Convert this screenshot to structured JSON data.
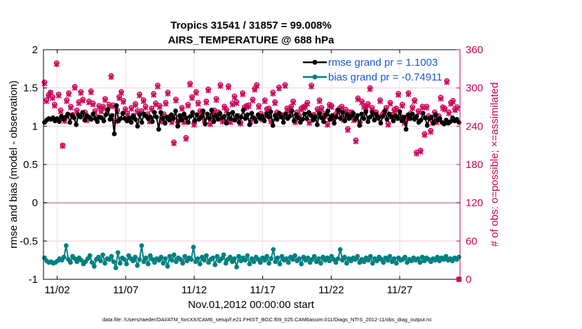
{
  "chart_data": {
    "type": "line",
    "title": "Tropics 31541 / 31857 = 99.008%",
    "subtitle": "AIRS_TEMPERATURE @ 688 hPa",
    "xlabel": "Nov.01,2012 00:00:00 start",
    "ylabel": "rmse and bias (model - observation)",
    "ylabel_right": "# of obs: o=possible; ×=assimilated",
    "xlim": [
      0,
      30.4
    ],
    "ylim": [
      -1,
      2
    ],
    "ylim_right": [
      0,
      360
    ],
    "x_ticks": [
      1,
      6,
      11,
      16,
      21,
      26
    ],
    "x_tick_labels": [
      "11/02",
      "11/07",
      "11/12",
      "11/17",
      "11/22",
      "11/27"
    ],
    "y_ticks": [
      -1,
      -0.5,
      0,
      0.5,
      1,
      1.5,
      2
    ],
    "y_tick_labels": [
      "-1",
      "-0.5",
      "0",
      "0.5",
      "1",
      "1.5",
      "2"
    ],
    "y_right_ticks": [
      0,
      60,
      120,
      180,
      240,
      300,
      360
    ],
    "y_right_tick_labels": [
      "0",
      "60",
      "120",
      "180",
      "240",
      "300",
      "360"
    ],
    "grid": true,
    "legend_position": "top-right",
    "series": [
      {
        "name": "rmse grand pr = 1.1003",
        "color": "#000000",
        "axis": "left",
        "values": [
          1.05,
          1.08,
          1.1,
          1.09,
          1.11,
          1.07,
          1.1,
          1.06,
          1.13,
          1.09,
          1.12,
          1.16,
          1.05,
          1.14,
          1.11,
          1.02,
          1.15,
          1.12,
          1.18,
          1.08,
          1.14,
          1.12,
          1.09,
          1.16,
          1.1,
          1.06,
          1.12,
          1.11,
          1.07,
          1.15,
          1.22,
          1.09,
          1.14,
          0.9,
          1.27,
          1.07,
          1.1,
          1.17,
          1.1,
          1.07,
          1.11,
          1.05,
          1.13,
          1.09,
          1.0,
          1.15,
          1.05,
          1.16,
          1.13,
          1.1,
          1.12,
          1.06,
          1.18,
          1.12,
          0.96,
          1.18,
          1.1,
          1.04,
          1.12,
          1.08,
          1.15,
          1.1,
          1.2,
          1.0,
          1.14,
          1.08,
          1.16,
          1.11,
          1.05,
          1.13,
          1.18,
          1.07,
          1.15,
          1.09,
          1.12,
          1.2,
          1.03,
          1.16,
          1.1,
          1.21,
          1.06,
          1.14,
          1.09,
          1.17,
          1.11,
          1.13,
          1.04,
          1.16,
          1.1,
          1.18,
          1.08,
          1.14,
          1.05,
          1.12,
          1.21,
          1.1,
          1.15,
          1.02,
          1.17,
          1.11,
          1.06,
          1.15,
          1.1,
          1.13,
          1.07,
          1.16,
          1.12,
          1.19,
          1.01,
          1.14,
          1.09,
          1.17,
          1.12,
          1.05,
          1.16,
          1.1,
          1.13,
          1.2,
          1.07,
          1.15,
          1.11,
          1.05,
          1.09,
          1.16,
          1.1,
          1.18,
          1.14,
          1.08,
          1.12,
          1.02,
          1.17,
          1.11,
          1.06,
          1.15,
          1.2,
          1.09,
          1.14,
          1.04,
          1.12,
          1.21,
          1.1,
          1.18,
          1.07,
          1.15,
          1.1,
          1.13,
          1.17,
          1.09,
          1.14,
          1.01,
          1.16,
          1.1,
          1.19,
          1.06,
          1.12,
          1.18,
          1.08,
          1.15,
          1.11,
          1.04,
          1.13,
          1.2,
          1.09,
          1.16,
          1.12,
          1.07,
          1.14,
          1.1,
          1.19,
          1.07,
          1.12,
          0.96,
          1.15,
          1.1,
          1.16,
          1.09,
          1.13,
          1.05,
          1.08,
          1.17,
          1.11,
          1.01,
          1.1,
          1.12,
          1.04,
          1.15,
          1.08,
          1.1,
          1.05,
          1.03,
          1.08,
          1.04,
          1.06,
          1.11,
          1.07,
          1.09,
          1.05
        ]
      },
      {
        "name": "bias grand pr = -0.74911",
        "color": "#008080",
        "axis": "left",
        "values": [
          -0.72,
          -0.76,
          -0.78,
          -0.77,
          -0.79,
          -0.78,
          -0.76,
          -0.73,
          -0.75,
          -0.71,
          -0.56,
          -0.74,
          -0.78,
          -0.7,
          -0.73,
          -0.77,
          -0.72,
          -0.75,
          -0.8,
          -0.77,
          -0.73,
          -0.69,
          -0.78,
          -0.83,
          -0.74,
          -0.71,
          -0.76,
          -0.68,
          -0.79,
          -0.73,
          -0.74,
          -0.7,
          -0.77,
          -0.85,
          -0.65,
          -0.79,
          -0.72,
          -0.74,
          -0.8,
          -0.69,
          -0.73,
          -0.76,
          -0.71,
          -0.82,
          -0.74,
          -0.56,
          -0.77,
          -0.72,
          -0.8,
          -0.69,
          -0.74,
          -0.78,
          -0.73,
          -0.75,
          -0.71,
          -0.79,
          -0.73,
          -0.83,
          -0.7,
          -0.75,
          -0.68,
          -0.77,
          -0.72,
          -0.74,
          -0.79,
          -0.7,
          -0.76,
          -0.72,
          -0.74,
          -0.58,
          -0.77,
          -0.73,
          -0.8,
          -0.71,
          -0.75,
          -0.69,
          -0.78,
          -0.74,
          -0.72,
          -0.81,
          -0.7,
          -0.76,
          -0.73,
          -0.68,
          -0.79,
          -0.74,
          -0.71,
          -0.77,
          -0.73,
          -0.84,
          -0.7,
          -0.76,
          -0.72,
          -0.75,
          -0.69,
          -0.8,
          -0.73,
          -0.77,
          -0.71,
          -0.74,
          -0.78,
          -0.72,
          -0.75,
          -0.7,
          -0.79,
          -0.73,
          -0.61,
          -0.77,
          -0.72,
          -0.8,
          -0.7,
          -0.75,
          -0.73,
          -0.78,
          -0.71,
          -0.74,
          -0.69,
          -0.76,
          -0.73,
          -0.8,
          -0.71,
          -0.75,
          -0.72,
          -0.78,
          -0.74,
          -0.7,
          -0.77,
          -0.73,
          -0.79,
          -0.71,
          -0.75,
          -0.72,
          -0.76,
          -0.7,
          -0.74,
          -0.78,
          -0.73,
          -0.61,
          -0.75,
          -0.71,
          -0.79,
          -0.73,
          -0.76,
          -0.72,
          -0.74,
          -0.7,
          -0.78,
          -0.74,
          -0.77,
          -0.72,
          -0.75,
          -0.7,
          -0.79,
          -0.73,
          -0.76,
          -0.71,
          -0.74,
          -0.78,
          -0.72,
          -0.75,
          -0.7,
          -0.77,
          -0.73,
          -0.79,
          -0.72,
          -0.75,
          -0.74,
          -0.71,
          -0.78,
          -0.74,
          -0.76,
          -0.72,
          -0.75,
          -0.73,
          -0.78,
          -0.71,
          -0.76,
          -0.72,
          -0.74,
          -0.77,
          -0.73,
          -0.75,
          -0.71,
          -0.76,
          -0.72,
          -0.74,
          -0.7,
          -0.75,
          -0.73,
          -0.76,
          -0.72,
          -0.74,
          -0.71
        ]
      },
      {
        "name": "# obs possible",
        "color": "#cc0055",
        "axis": "right",
        "marker": "o",
        "values": [
          309,
          281,
          289,
          293,
          286,
          274,
          339,
          290,
          265,
          210,
          250,
          281,
          292,
          271,
          258,
          302,
          265,
          278,
          294,
          282,
          262,
          251,
          279,
          295,
          276,
          264,
          254,
          272,
          265,
          271,
          283,
          265,
          274,
          319,
          273,
          249,
          265,
          286,
          294,
          280,
          267,
          260,
          252,
          269,
          257,
          275,
          264,
          290,
          264,
          281,
          271,
          259,
          249,
          268,
          291,
          276,
          304,
          272,
          249,
          259,
          277,
          293,
          255,
          248,
          215,
          282,
          246,
          256,
          269,
          248,
          222,
          274,
          307,
          286,
          244,
          294,
          277,
          264,
          261,
          251,
          279,
          298,
          245,
          257,
          265,
          283,
          262,
          305,
          249,
          271,
          266,
          303,
          248,
          276,
          287,
          278,
          256,
          246,
          292,
          270,
          272,
          273,
          249,
          282,
          299,
          305,
          272,
          260,
          252,
          281,
          267,
          268,
          249,
          293,
          278,
          262,
          301,
          258,
          257,
          305,
          268,
          265,
          271,
          279,
          248,
          262,
          257,
          268,
          270,
          272,
          277,
          247,
          304,
          258,
          256,
          267,
          281,
          269,
          260,
          257,
          244,
          274,
          272,
          253,
          259,
          265,
          268,
          271,
          252,
          266,
          236,
          262,
          262,
          251,
          218,
          284,
          246,
          279,
          272,
          270,
          275,
          300,
          269,
          262,
          262,
          254,
          281,
          258,
          262,
          269,
          244,
          277,
          258,
          266,
          268,
          291,
          256,
          274,
          247,
          254,
          292,
          260,
          270,
          281,
          199,
          264,
          202,
          271,
          228,
          271,
          256,
          233,
          247,
          262,
          248,
          256,
          285,
          270,
          268,
          311,
          262,
          277,
          280,
          267,
          270,
          0
        ]
      },
      {
        "name": "# obs assimilated",
        "color": "#cc0055",
        "axis": "right",
        "marker": "x",
        "values": [
          307,
          279,
          287,
          292,
          284,
          272,
          337,
          288,
          263,
          209,
          248,
          279,
          290,
          269,
          257,
          300,
          263,
          276,
          292,
          280,
          260,
          249,
          277,
          293,
          274,
          262,
          252,
          270,
          263,
          269,
          281,
          263,
          272,
          317,
          271,
          247,
          263,
          284,
          292,
          278,
          265,
          258,
          250,
          267,
          255,
          273,
          262,
          288,
          262,
          279,
          269,
          257,
          247,
          266,
          289,
          274,
          302,
          270,
          247,
          257,
          275,
          291,
          253,
          246,
          213,
          280,
          244,
          254,
          267,
          246,
          220,
          272,
          305,
          284,
          242,
          292,
          275,
          262,
          259,
          249,
          277,
          296,
          243,
          255,
          263,
          281,
          260,
          303,
          247,
          269,
          264,
          301,
          246,
          274,
          285,
          276,
          254,
          244,
          290,
          268,
          270,
          271,
          247,
          280,
          297,
          303,
          270,
          258,
          250,
          279,
          265,
          266,
          247,
          291,
          276,
          260,
          299,
          256,
          255,
          303,
          266,
          263,
          269,
          277,
          246,
          260,
          255,
          266,
          268,
          270,
          275,
          245,
          302,
          256,
          254,
          265,
          279,
          267,
          258,
          255,
          242,
          272,
          270,
          251,
          257,
          263,
          266,
          269,
          250,
          264,
          234,
          260,
          260,
          249,
          216,
          282,
          244,
          277,
          270,
          268,
          273,
          298,
          267,
          260,
          260,
          252,
          279,
          256,
          260,
          267,
          242,
          275,
          256,
          264,
          266,
          289,
          254,
          272,
          245,
          252,
          290,
          258,
          268,
          279,
          197,
          262,
          200,
          269,
          226,
          269,
          254,
          231,
          245,
          260,
          246,
          254,
          283,
          268,
          266,
          309,
          260,
          275,
          278,
          265,
          268,
          0
        ]
      }
    ],
    "footer": "data file: /Users/raeder/DAI/ATM_forcXX/CAM6_setup/f.e21.FHIST_BGC.f09_025.CAM6assim.011/Diags_NTrS_2012-11/obs_diag_output.nc"
  }
}
